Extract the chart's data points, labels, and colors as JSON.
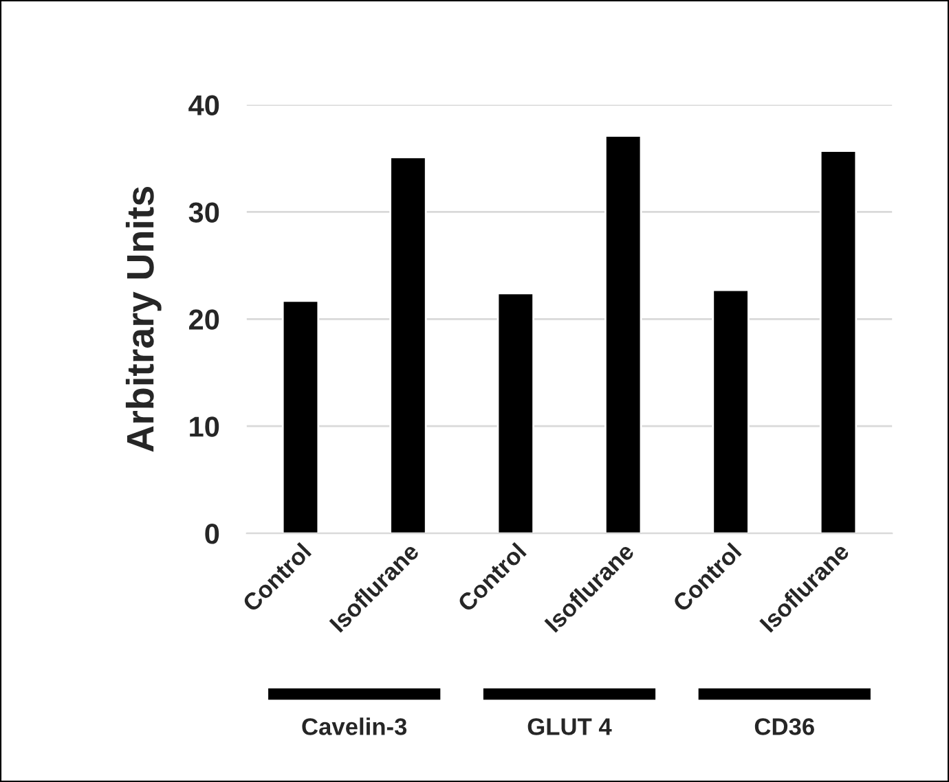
{
  "chart_data": {
    "type": "bar",
    "ylabel": "Arbitrary Units",
    "categories": [
      "Control",
      "Isoflurane",
      "Control",
      "Isoflurane",
      "Control",
      "Isoflurane"
    ],
    "values": [
      21.7,
      35.1,
      22.4,
      37.1,
      22.7,
      35.7
    ],
    "color": "#000000",
    "ylim": [
      0,
      40
    ],
    "yticks": [
      0,
      10,
      20,
      30,
      40
    ],
    "grid": "y",
    "annotations": [
      "Cavelin-3",
      "GLUT 4",
      "CD36"
    ]
  }
}
